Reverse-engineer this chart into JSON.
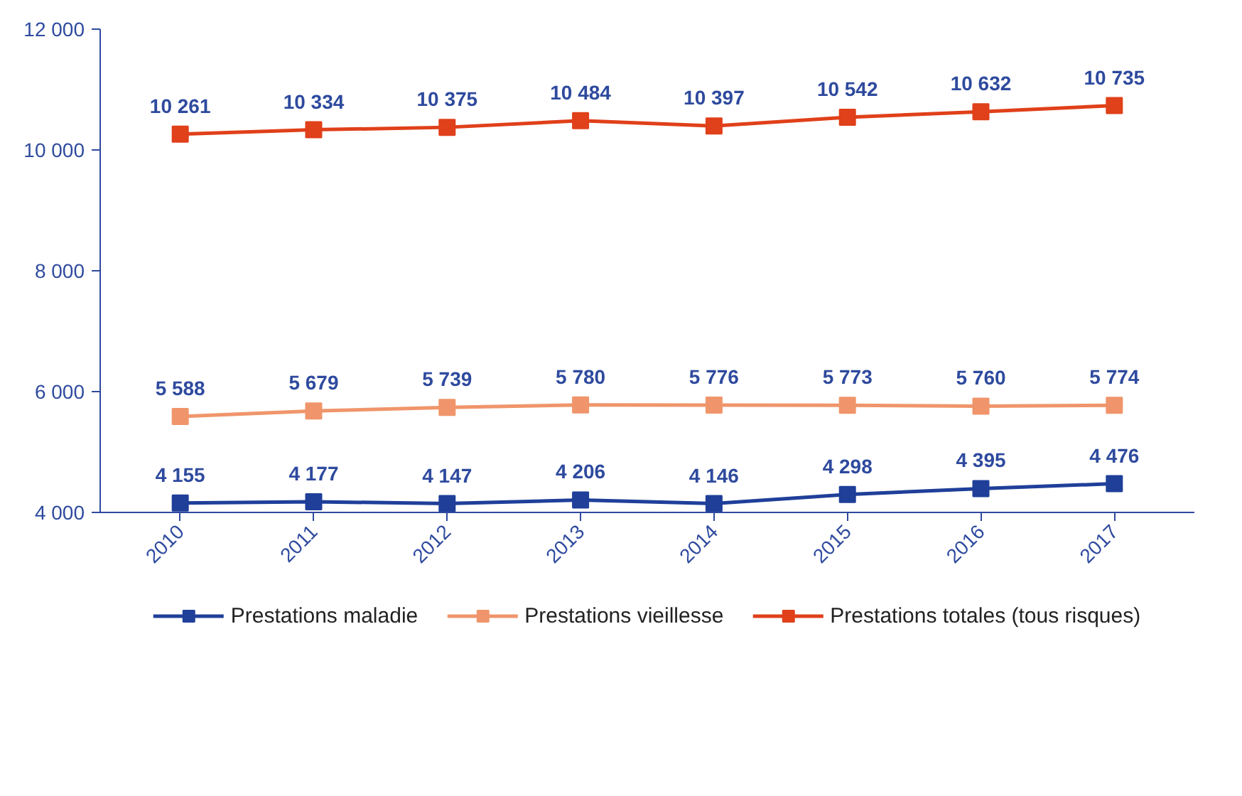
{
  "chart_data": {
    "type": "line",
    "categories": [
      "2010",
      "2011",
      "2012",
      "2013",
      "2014",
      "2015",
      "2016",
      "2017"
    ],
    "series": [
      {
        "name": "Prestations maladie",
        "color": "#1f3f99",
        "values": [
          4155,
          4177,
          4147,
          4206,
          4146,
          4298,
          4395,
          4476
        ]
      },
      {
        "name": "Prestations vieillesse",
        "color": "#f0956b",
        "values": [
          5588,
          5679,
          5739,
          5780,
          5776,
          5773,
          5760,
          5774
        ]
      },
      {
        "name": "Prestations totales (tous risques)",
        "color": "#e0401a",
        "values": [
          10261,
          10334,
          10375,
          10484,
          10397,
          10542,
          10632,
          10735
        ]
      }
    ],
    "ylim": [
      4000,
      12000
    ],
    "yticks": [
      {
        "value": 4000,
        "label": "4 000"
      },
      {
        "value": 6000,
        "label": "6 000"
      },
      {
        "value": 8000,
        "label": "8 000"
      },
      {
        "value": 10000,
        "label": "10 000"
      },
      {
        "value": 12000,
        "label": "12 000"
      }
    ],
    "data_labels": true,
    "marker": "square",
    "line_style": "solid",
    "grid": false,
    "legend": "bottom"
  }
}
